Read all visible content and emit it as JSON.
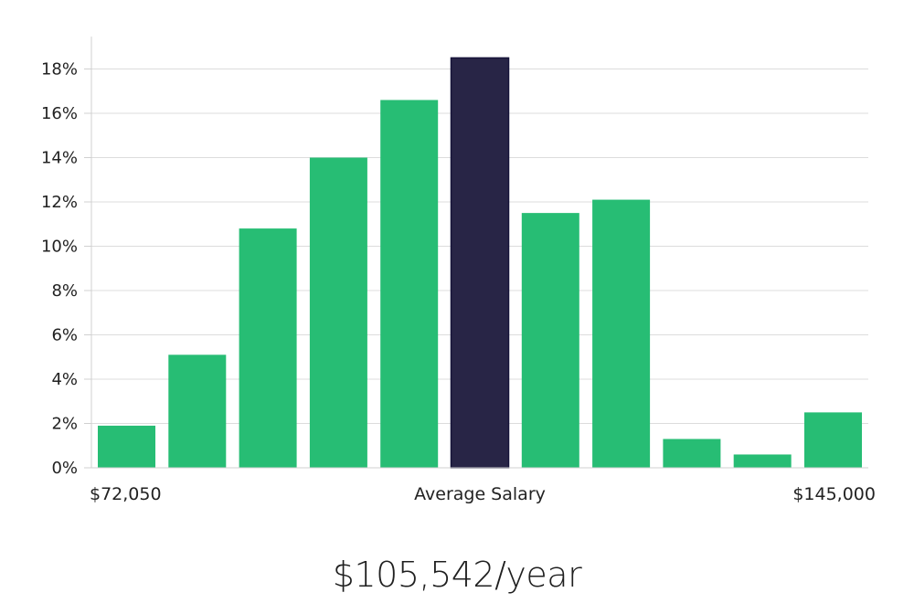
{
  "chart_data": {
    "type": "bar",
    "values": [
      1.9,
      5.1,
      10.8,
      14.0,
      16.6,
      18.5,
      11.5,
      12.1,
      1.3,
      0.6,
      2.5
    ],
    "highlight_index": 5,
    "y_ticks": [
      "0%",
      "2%",
      "4%",
      "6%",
      "8%",
      "10%",
      "12%",
      "14%",
      "16%",
      "18%"
    ],
    "ylim": [
      0,
      19.5
    ],
    "grid": true,
    "x_labels": {
      "left": "$72,050",
      "center": "Average Salary",
      "right": "$145,000"
    },
    "colors": {
      "bar": "#27bd74",
      "highlight": "#282546",
      "highlight_border": "#16143a"
    }
  },
  "summary": {
    "average_salary": "$105,542/year"
  }
}
